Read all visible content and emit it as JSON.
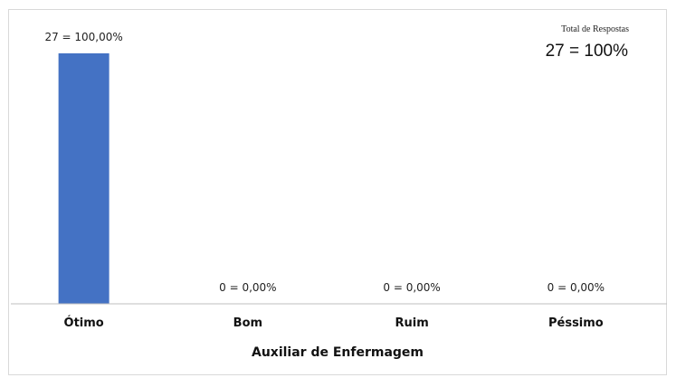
{
  "chart_data": {
    "type": "bar",
    "categories": [
      "Ótimo",
      "Bom",
      "Ruim",
      "Péssimo"
    ],
    "values": [
      27,
      0,
      0,
      0
    ],
    "data_labels": [
      "27 = 100,00%",
      "0 = 0,00%",
      "0 = 0,00%",
      "0 = 0,00%"
    ],
    "xlabel": "Auxiliar de Enfermagem",
    "ylabel": "",
    "ylim": [
      0,
      27
    ],
    "grid": false,
    "bar_color": "#4472c4"
  },
  "summary": {
    "caption": "Total de Respostas",
    "value": "27 = 100%"
  }
}
